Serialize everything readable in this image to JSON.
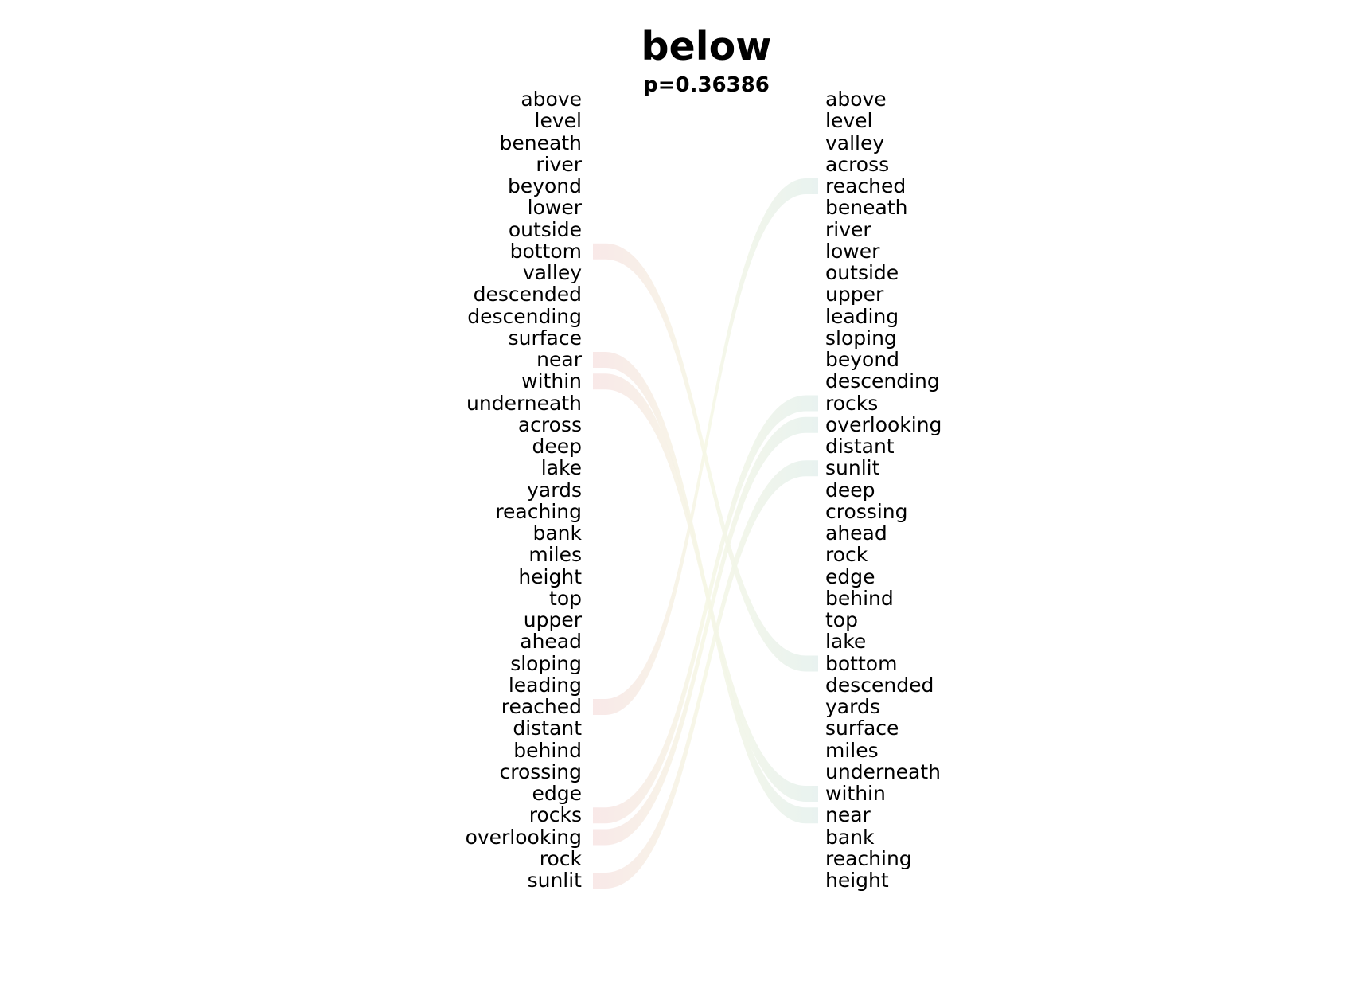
{
  "title": "below",
  "subtitle": "p=0.36386",
  "left_words": [
    "above",
    "level",
    "beneath",
    "river",
    "beyond",
    "lower",
    "outside",
    "bottom",
    "valley",
    "descended",
    "descending",
    "surface",
    "near",
    "within",
    "underneath",
    "across",
    "deep",
    "lake",
    "yards",
    "reaching",
    "bank",
    "miles",
    "height",
    "top",
    "upper",
    "ahead",
    "sloping",
    "leading",
    "reached",
    "distant",
    "behind",
    "crossing",
    "edge",
    "rocks",
    "overlooking",
    "rock",
    "sunlit"
  ],
  "right_words": [
    "above",
    "level",
    "valley",
    "across",
    "reached",
    "beneath",
    "river",
    "lower",
    "outside",
    "upper",
    "leading",
    "sloping",
    "beyond",
    "descending",
    "rocks",
    "overlooking",
    "distant",
    "sunlit",
    "deep",
    "crossing",
    "ahead",
    "rock",
    "edge",
    "behind",
    "top",
    "lake",
    "bottom",
    "descended",
    "yards",
    "surface",
    "miles",
    "underneath",
    "within",
    "near",
    "bank",
    "reaching",
    "height"
  ],
  "links": [
    {
      "left": "bottom",
      "right": "bottom"
    },
    {
      "left": "near",
      "right": "near"
    },
    {
      "left": "within",
      "right": "within"
    },
    {
      "left": "reached",
      "right": "reached"
    },
    {
      "left": "rocks",
      "right": "rocks"
    },
    {
      "left": "overlooking",
      "right": "overlooking"
    },
    {
      "left": "sunlit",
      "right": "sunlit"
    }
  ],
  "colors": {
    "text": "#000000",
    "link_left_end": "#f8e6e6",
    "link_mid": "#f6f7e6",
    "link_right_end": "#e6f1ee"
  }
}
